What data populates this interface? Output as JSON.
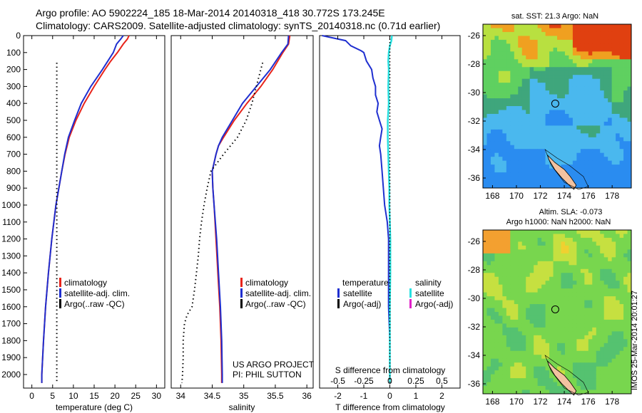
{
  "header": {
    "line1": "Argo profile: AO 5902224_185 18-Mar-2014 20140318_418 30.772S 173.245E",
    "line2": "Climatology: CARS2009. Satellite-adjusted climatology: synTS_20140318.nc (0.71d earlier)"
  },
  "colors": {
    "climatology": "#e8241b",
    "satellite": "#1f2fd0",
    "argo": "#000000",
    "sat_salinity": "#28e0e0",
    "argo_adj_salinity": "#e020c8"
  },
  "chart_data": [
    {
      "type": "line",
      "id": "temperature",
      "xlabel": "temperature (deg C)",
      "ylabel": "",
      "xlim": [
        -2,
        32
      ],
      "ylim": [
        2080,
        0
      ],
      "xticks": [
        "0",
        "5",
        "10",
        "15",
        "20",
        "25",
        "30"
      ],
      "xtick_values": [
        0,
        5,
        10,
        15,
        20,
        25,
        30
      ],
      "yticks": [
        "0",
        "100",
        "200",
        "300",
        "400",
        "500",
        "600",
        "700",
        "800",
        "900",
        "1000",
        "1100",
        "1200",
        "1300",
        "1400",
        "1500",
        "1600",
        "1700",
        "1800",
        "1900",
        "2000"
      ],
      "ytick_values": [
        0,
        100,
        200,
        300,
        400,
        500,
        600,
        700,
        800,
        900,
        1000,
        1100,
        1200,
        1300,
        1400,
        1500,
        1600,
        1700,
        1800,
        1900,
        2000
      ],
      "legend": [
        "climatology",
        "satellite-adj. clim.",
        "Argo(..raw -QC)"
      ],
      "series": [
        {
          "name": "climatology",
          "depth": [
            0,
            20,
            50,
            100,
            150,
            200,
            300,
            400,
            500,
            600,
            700,
            800,
            900,
            1000,
            1200,
            1400,
            1600,
            1800,
            2000,
            2050
          ],
          "values": [
            23.4,
            23.0,
            22.0,
            20.6,
            19.0,
            17.6,
            15.0,
            12.6,
            10.6,
            9.0,
            8.0,
            7.2,
            6.5,
            5.8,
            4.8,
            4.0,
            3.3,
            2.8,
            2.4,
            2.4
          ]
        },
        {
          "name": "satellite-adj. clim.",
          "depth": [
            0,
            20,
            50,
            100,
            150,
            200,
            300,
            400,
            500,
            600,
            700,
            800,
            900,
            1000,
            1200,
            1400,
            1600,
            1800,
            2000,
            2050
          ],
          "values": [
            22.0,
            21.4,
            20.4,
            19.6,
            18.3,
            17.0,
            14.2,
            11.9,
            10.3,
            8.8,
            7.9,
            7.2,
            6.5,
            5.8,
            4.8,
            4.0,
            3.3,
            2.8,
            2.4,
            2.4
          ]
        },
        {
          "name": "Argo(..raw -QC)",
          "depth": [
            160,
            400,
            800,
            1200,
            1600,
            2000,
            2050
          ],
          "values": [
            6.0,
            6.0,
            6.0,
            6.0,
            6.0,
            6.0,
            6.0
          ]
        }
      ]
    },
    {
      "type": "line",
      "id": "salinity",
      "xlabel": "salinity",
      "xlim": [
        33.85,
        36.1
      ],
      "ylim": [
        2080,
        0
      ],
      "xticks": [
        "34",
        "34.5",
        "35",
        "35.5",
        "36"
      ],
      "xtick_values": [
        34,
        34.5,
        35,
        35.5,
        36
      ],
      "legend": [
        "climatology",
        "satellite-adj. clim.",
        "Argo(..raw -QC)"
      ],
      "annotation": [
        "US ARGO PROJECT",
        "PI: PHIL SUTTON"
      ],
      "series": [
        {
          "name": "climatology",
          "depth": [
            0,
            50,
            100,
            200,
            300,
            400,
            500,
            600,
            650,
            700,
            800,
            900,
            1000,
            1200,
            1400,
            1600,
            1800,
            2000,
            2050
          ],
          "values": [
            35.73,
            35.71,
            35.62,
            35.46,
            35.27,
            35.05,
            34.85,
            34.68,
            34.6,
            34.56,
            34.5,
            34.51,
            34.53,
            34.56,
            34.59,
            34.62,
            34.64,
            34.65,
            34.65
          ]
        },
        {
          "name": "satellite-adj. clim.",
          "depth": [
            0,
            50,
            100,
            200,
            300,
            400,
            500,
            600,
            650,
            700,
            800,
            900,
            1000,
            1200,
            1400,
            1600,
            1800,
            2000,
            2050
          ],
          "values": [
            35.71,
            35.7,
            35.6,
            35.42,
            35.2,
            34.98,
            34.82,
            34.66,
            34.6,
            34.56,
            34.5,
            34.51,
            34.53,
            34.57,
            34.6,
            34.63,
            34.65,
            34.66,
            34.66
          ]
        },
        {
          "name": "Argo(..raw -QC)",
          "depth": [
            160,
            200,
            300,
            400,
            500,
            600,
            700,
            800,
            900,
            1000,
            1100,
            1200,
            1300,
            1400,
            1500,
            1600,
            1650,
            1700,
            1800,
            1900,
            2000,
            2050
          ],
          "values": [
            35.3,
            35.27,
            35.2,
            35.13,
            35.04,
            34.9,
            34.68,
            34.48,
            34.42,
            34.37,
            34.33,
            34.3,
            34.28,
            34.25,
            34.22,
            34.18,
            34.1,
            34.06,
            34.04,
            34.04,
            34.03,
            34.02
          ]
        }
      ]
    },
    {
      "type": "line",
      "id": "difference",
      "xlabel": "T difference from climatology",
      "xlabel_top": "S difference from climatology",
      "xlim": [
        -2.7,
        2.7
      ],
      "ylim": [
        2080,
        0
      ],
      "xticks": [
        "-2",
        "-1",
        "0",
        "1",
        "2"
      ],
      "xtick_values": [
        -2,
        -1,
        0,
        1,
        2
      ],
      "xticks_top": [
        "-0.5",
        "-0.25",
        "0",
        "0.25",
        "0.5"
      ],
      "xtick_top_values": [
        -0.5,
        -0.25,
        0,
        0.25,
        0.5
      ],
      "legend_left_title": "temperature",
      "legend_right_title": "salinity",
      "legend": [
        "satellite",
        "Argo(-adj)",
        "satellite",
        "Argo(-adj)"
      ],
      "series": [
        {
          "name": "temperature satellite",
          "depth": [
            0,
            30,
            60,
            90,
            100,
            150,
            200,
            250,
            300,
            350,
            400,
            450,
            500,
            550,
            600,
            650,
            700,
            800,
            900,
            1000,
            1100,
            1200,
            1400,
            1600,
            1800,
            2000,
            2050
          ],
          "values": [
            -2.6,
            -1.7,
            -1.5,
            -1.1,
            -1.0,
            -0.9,
            -0.7,
            -0.65,
            -0.55,
            -0.55,
            -0.45,
            -0.5,
            -0.4,
            -0.3,
            -0.35,
            -0.4,
            -0.35,
            -0.3,
            -0.25,
            -0.2,
            -0.1,
            -0.05,
            -0.05,
            -0.05,
            0,
            0,
            0
          ]
        },
        {
          "name": "salinity satellite",
          "depth": [
            0,
            30,
            60,
            100,
            150,
            200,
            300,
            400,
            500,
            600,
            700,
            800,
            900,
            1000,
            1200,
            1400,
            1600,
            1800,
            2000,
            2050
          ],
          "values": [
            0.02,
            0.015,
            0.0,
            -0.01,
            -0.015,
            -0.01,
            -0.015,
            -0.01,
            -0.02,
            -0.02,
            -0.015,
            -0.01,
            -0.005,
            -0.005,
            0.005,
            0.005,
            0.0,
            0.0,
            0.0,
            0.0
          ]
        },
        {
          "name": "zero line",
          "depth": [
            0,
            2050
          ],
          "values": [
            0,
            0
          ]
        }
      ]
    },
    {
      "type": "heatmap",
      "id": "sst_map",
      "title": "sat. SST: 21.3 Argo: NaN",
      "xticks": [
        "168",
        "170",
        "172",
        "174",
        "176",
        "178"
      ],
      "xtick_values": [
        168,
        170,
        172,
        174,
        176,
        178
      ],
      "yticks": [
        "-26",
        "-28",
        "-30",
        "-32",
        "-34",
        "-36"
      ],
      "ytick_values": [
        -26,
        -28,
        -30,
        -32,
        -34,
        -36
      ],
      "xlim": [
        167.2,
        179.6
      ],
      "ylim": [
        -36.7,
        -25.2
      ],
      "marker": [
        173.245,
        -30.772
      ]
    },
    {
      "type": "heatmap",
      "id": "sla_map",
      "title": [
        "Altim. SLA: -0.073",
        "Argo h1000: NaN h2000: NaN"
      ],
      "xticks": [
        "168",
        "170",
        "172",
        "174",
        "176",
        "178"
      ],
      "xtick_values": [
        168,
        170,
        172,
        174,
        176,
        178
      ],
      "yticks": [
        "-26",
        "-28",
        "-30",
        "-32",
        "-34",
        "-36"
      ],
      "ytick_values": [
        -26,
        -28,
        -30,
        -32,
        -34,
        -36
      ],
      "xlim": [
        167.2,
        179.6
      ],
      "ylim": [
        -36.7,
        -25.2
      ],
      "marker": [
        173.245,
        -30.772
      ],
      "side_label": "IMOS 25-Mar-2014 20:01:27"
    }
  ]
}
